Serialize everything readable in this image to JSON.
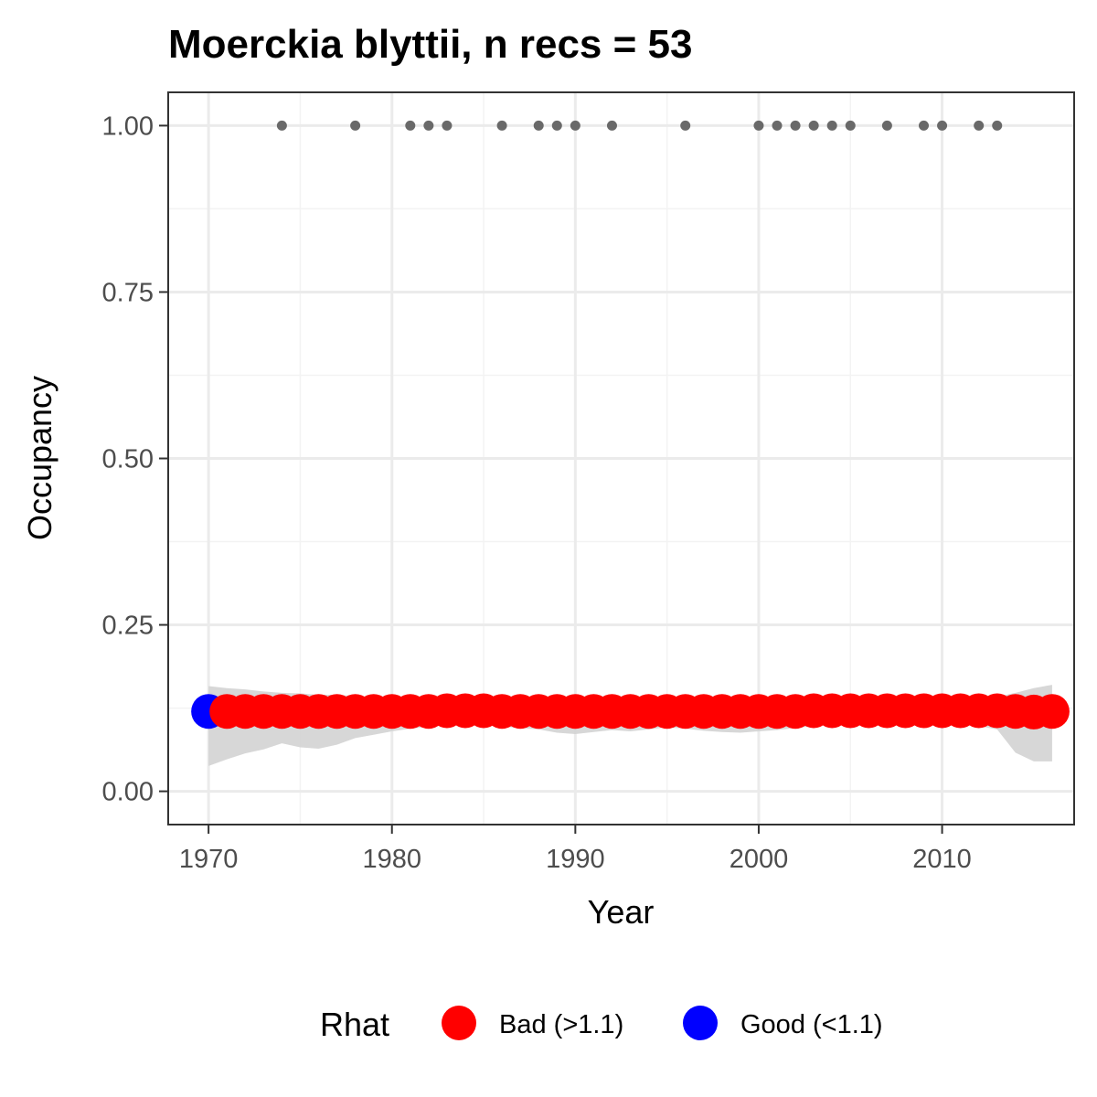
{
  "chart_data": {
    "type": "scatter",
    "title": "Moerckia blyttii, n recs = 53",
    "xlabel": "Year",
    "ylabel": "Occupancy",
    "xlim": [
      1967.8,
      1977.2
    ],
    "ylim": [
      -0.05,
      1.05
    ],
    "x_ticks": [
      1970,
      1980,
      1990,
      2000,
      2010
    ],
    "x_tick_labels": [
      "1970",
      "1980",
      "1990",
      "2000",
      "2010"
    ],
    "y_ticks": [
      0,
      0.25,
      0.5,
      0.75,
      1
    ],
    "y_tick_labels": [
      "0.00",
      "0.25",
      "0.50",
      "0.75",
      "1.00"
    ],
    "grid": true,
    "legend": {
      "title": "Rhat",
      "position": "bottom",
      "entries": [
        {
          "label": "Bad (>1.1)",
          "color": "#ff0000"
        },
        {
          "label": "Good (<1.1)",
          "color": "#0000ff"
        }
      ]
    },
    "occupancy": {
      "years": [
        1970,
        1971,
        1972,
        1973,
        1974,
        1975,
        1976,
        1977,
        1978,
        1979,
        1980,
        1981,
        1982,
        1983,
        1984,
        1985,
        1986,
        1987,
        1988,
        1989,
        1990,
        1991,
        1992,
        1993,
        1994,
        1995,
        1996,
        1997,
        1998,
        1999,
        2000,
        2001,
        2002,
        2003,
        2004,
        2005,
        2006,
        2007,
        2008,
        2009,
        2010,
        2011,
        2012,
        2013,
        2014,
        2015,
        2016
      ],
      "mean": [
        0.12,
        0.12,
        0.12,
        0.12,
        0.12,
        0.12,
        0.12,
        0.12,
        0.12,
        0.12,
        0.12,
        0.12,
        0.12,
        0.121,
        0.121,
        0.121,
        0.12,
        0.12,
        0.12,
        0.12,
        0.12,
        0.12,
        0.12,
        0.12,
        0.12,
        0.12,
        0.12,
        0.12,
        0.12,
        0.12,
        0.12,
        0.12,
        0.12,
        0.121,
        0.121,
        0.121,
        0.121,
        0.121,
        0.121,
        0.121,
        0.121,
        0.121,
        0.121,
        0.121,
        0.12,
        0.119,
        0.12
      ],
      "lower": [
        0.038,
        0.048,
        0.057,
        0.063,
        0.072,
        0.066,
        0.064,
        0.07,
        0.08,
        0.085,
        0.09,
        0.094,
        0.097,
        0.099,
        0.1,
        0.1,
        0.097,
        0.095,
        0.093,
        0.088,
        0.086,
        0.089,
        0.092,
        0.09,
        0.093,
        0.096,
        0.094,
        0.091,
        0.089,
        0.088,
        0.09,
        0.092,
        0.095,
        0.098,
        0.1,
        0.101,
        0.1,
        0.1,
        0.1,
        0.1,
        0.1,
        0.1,
        0.098,
        0.093,
        0.058,
        0.045,
        0.045
      ],
      "upper": [
        0.158,
        0.155,
        0.153,
        0.15,
        0.148,
        0.147,
        0.145,
        0.145,
        0.143,
        0.142,
        0.141,
        0.14,
        0.14,
        0.14,
        0.14,
        0.14,
        0.141,
        0.141,
        0.141,
        0.142,
        0.142,
        0.142,
        0.142,
        0.142,
        0.141,
        0.141,
        0.141,
        0.142,
        0.142,
        0.142,
        0.142,
        0.141,
        0.141,
        0.141,
        0.14,
        0.14,
        0.14,
        0.14,
        0.14,
        0.14,
        0.14,
        0.14,
        0.141,
        0.142,
        0.148,
        0.155,
        0.16
      ],
      "rhat": [
        "Good",
        "Bad",
        "Bad",
        "Bad",
        "Bad",
        "Bad",
        "Bad",
        "Bad",
        "Bad",
        "Bad",
        "Bad",
        "Bad",
        "Bad",
        "Bad",
        "Bad",
        "Bad",
        "Bad",
        "Bad",
        "Bad",
        "Bad",
        "Bad",
        "Bad",
        "Bad",
        "Bad",
        "Bad",
        "Bad",
        "Bad",
        "Bad",
        "Bad",
        "Bad",
        "Bad",
        "Bad",
        "Bad",
        "Bad",
        "Bad",
        "Bad",
        "Bad",
        "Bad",
        "Bad",
        "Bad",
        "Bad",
        "Bad",
        "Bad",
        "Bad",
        "Bad",
        "Bad",
        "Bad"
      ]
    },
    "records": {
      "years": [
        1974,
        1978,
        1981,
        1982,
        1983,
        1986,
        1988,
        1989,
        1990,
        1992,
        1996,
        2000,
        2001,
        2002,
        2003,
        2004,
        2005,
        2007,
        2009,
        2010,
        2012,
        2013
      ],
      "value": 1.0,
      "color": "#696969"
    },
    "colors": {
      "bad": "#ff0000",
      "good": "#0000ff",
      "ribbon": "#d3d3d3"
    }
  }
}
